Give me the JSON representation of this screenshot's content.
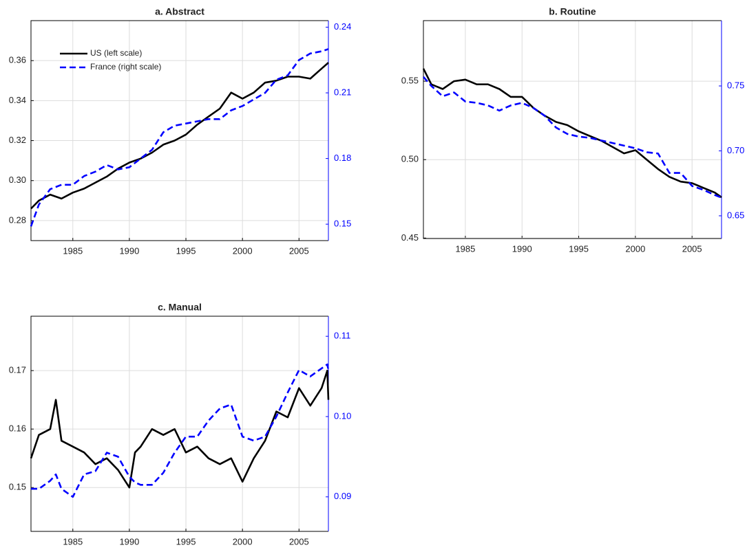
{
  "chart_data": [
    {
      "type": "line",
      "title": "a. Abstract",
      "legend": "upper left",
      "grid": true,
      "xlim": [
        1981.3,
        2007.6
      ],
      "xticks": [
        1985,
        1990,
        1995,
        2000,
        2005
      ],
      "ylim": [
        0.27,
        0.38
      ],
      "yticks": [
        0.28,
        {
          "value": 0.3,
          "label": "0.30"
        },
        0.32,
        0.34,
        0.36
      ],
      "y2lim": [
        0.1425,
        0.243
      ],
      "y2ticks": [
        0.15,
        0.18,
        0.21,
        0.24
      ],
      "x": [
        1981.3,
        1982,
        1983,
        1984,
        1985,
        1986,
        1987,
        1988,
        1989,
        1990,
        1991,
        1992,
        1993,
        1994,
        1995,
        1996,
        1997,
        1998,
        1999,
        2000,
        2001,
        2002,
        2003,
        2004,
        2005,
        2006,
        2007,
        2007.6
      ],
      "series": [
        {
          "name": "US (left scale)",
          "color": "#000000",
          "values": [
            0.286,
            0.29,
            0.293,
            0.291,
            0.294,
            0.296,
            0.299,
            0.302,
            0.306,
            0.309,
            0.311,
            0.314,
            0.318,
            0.32,
            0.323,
            0.328,
            0.332,
            0.336,
            0.344,
            0.341,
            0.344,
            0.349,
            0.35,
            0.352,
            0.352,
            0.351,
            0.356,
            0.359
          ]
        },
        {
          "name": "France (right scale)",
          "color": "#0000ff",
          "axis": "y2",
          "values": [
            0.149,
            0.159,
            0.166,
            0.168,
            0.168,
            0.172,
            0.174,
            0.177,
            0.175,
            0.176,
            0.18,
            0.184,
            0.192,
            0.195,
            0.196,
            0.197,
            0.198,
            0.198,
            0.202,
            0.204,
            0.207,
            0.21,
            0.216,
            0.218,
            0.225,
            0.228,
            0.229,
            0.23
          ]
        }
      ]
    },
    {
      "type": "line",
      "title": "b. Routine",
      "grid": true,
      "xlim": [
        1981.3,
        2007.6
      ],
      "xticks": [
        1985,
        1990,
        1995,
        2000,
        2005
      ],
      "ylim": [
        0.4497,
        0.5886
      ],
      "yticks": [
        0.45,
        {
          "value": 0.5,
          "label": "0.50"
        },
        0.55
      ],
      "y2lim": [
        0.6325,
        0.8003
      ],
      "y2ticks": [
        0.65,
        {
          "value": 0.7,
          "label": "0.70"
        },
        0.75
      ],
      "x": [
        1981.3,
        1982,
        1983,
        1984,
        1985,
        1986,
        1987,
        1988,
        1989,
        1990,
        1991,
        1992,
        1993,
        1994,
        1995,
        1996,
        1997,
        1998,
        1999,
        2000,
        2001,
        2002,
        2003,
        2004,
        2005,
        2006,
        2007,
        2007.6
      ],
      "series": [
        {
          "color": "#000000",
          "values": [
            0.558,
            0.548,
            0.545,
            0.55,
            0.551,
            0.548,
            0.548,
            0.545,
            0.54,
            0.54,
            0.533,
            0.528,
            0.524,
            0.522,
            0.518,
            0.515,
            0.512,
            0.508,
            0.504,
            0.506,
            0.5,
            0.494,
            0.489,
            0.486,
            0.485,
            0.482,
            0.479,
            0.476
          ]
        },
        {
          "color": "#0000ff",
          "axis": "y2",
          "values": [
            0.757,
            0.75,
            0.742,
            0.745,
            0.738,
            0.737,
            0.735,
            0.731,
            0.735,
            0.737,
            0.733,
            0.727,
            0.718,
            0.713,
            0.711,
            0.71,
            0.708,
            0.706,
            0.704,
            0.702,
            0.699,
            0.698,
            0.683,
            0.683,
            0.673,
            0.67,
            0.666,
            0.664
          ]
        }
      ]
    },
    {
      "type": "line",
      "title": "c. Manual",
      "grid": true,
      "xlim": [
        1981.3,
        2007.6
      ],
      "xticks": [
        1985,
        1990,
        1995,
        2000,
        2005
      ],
      "ylim": [
        0.1425,
        0.1793
      ],
      "yticks": [
        0.15,
        0.16,
        0.17
      ],
      "y2lim": [
        0.0857,
        0.1125
      ],
      "y2ticks": [
        0.09,
        {
          "value": 0.1,
          "label": "0.10"
        },
        0.11
      ],
      "x": [
        1981.3,
        1982,
        1983,
        1983.5,
        1984,
        1985,
        1986,
        1987,
        1988,
        1989,
        1990,
        1990.5,
        1991,
        1992,
        1993,
        1994,
        1995,
        1996,
        1997,
        1998,
        1999,
        2000,
        2001,
        2002,
        2003,
        2004,
        2005,
        2006,
        2007,
        2007.5,
        2007.6
      ],
      "series": [
        {
          "color": "#000000",
          "values": [
            0.155,
            0.159,
            0.16,
            0.165,
            0.158,
            0.157,
            0.156,
            0.154,
            0.155,
            0.153,
            0.15,
            0.156,
            0.157,
            0.16,
            0.159,
            0.16,
            0.156,
            0.157,
            0.155,
            0.154,
            0.155,
            0.151,
            0.155,
            0.158,
            0.163,
            0.162,
            0.167,
            0.164,
            0.167,
            0.17,
            0.165
          ]
        },
        {
          "color": "#0000ff",
          "axis": "y2",
          "values": [
            0.091,
            0.091,
            0.092,
            0.0928,
            0.091,
            0.09,
            0.0928,
            0.0932,
            0.0955,
            0.095,
            0.0925,
            0.0918,
            0.0915,
            0.0915,
            0.093,
            0.0955,
            0.0975,
            0.0975,
            0.0995,
            0.101,
            0.1015,
            0.0975,
            0.097,
            0.0975,
            0.1,
            0.103,
            0.1058,
            0.105,
            0.106,
            0.1065,
            0.1058
          ]
        }
      ]
    }
  ]
}
